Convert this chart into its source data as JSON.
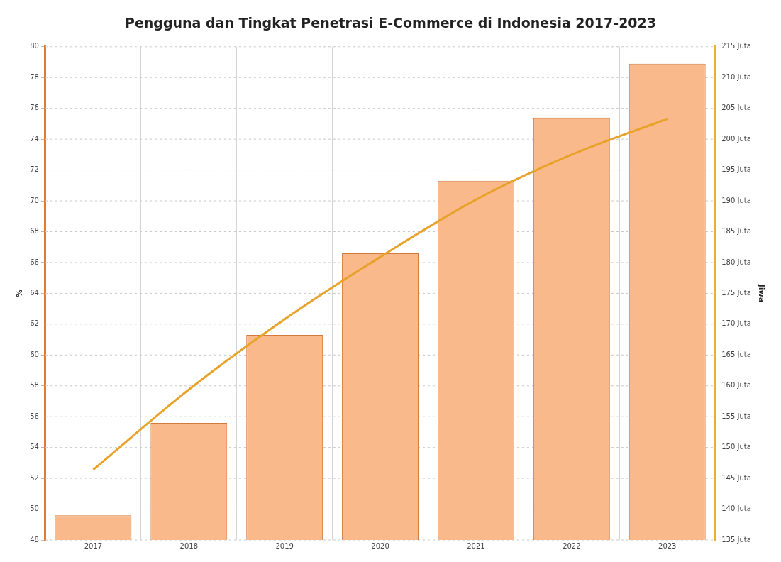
{
  "chart_data": {
    "type": "bar",
    "title": "Pengguna dan Tingkat Penetrasi E-Commerce di Indonesia 2017-2023",
    "categories": [
      "2017",
      "2018",
      "2019",
      "2020",
      "2021",
      "2022",
      "2023"
    ],
    "series": [
      {
        "color": "#f9b98a",
        "values": [
          49.6,
          55.6,
          61.3,
          66.6,
          71.3,
          75.4,
          78.9
        ]
      },
      {
        "type": "line",
        "axis": "y2",
        "color": "#e8a22a",
        "values": [
          146.4,
          159.4,
          170.8,
          180.9,
          190.2,
          197.5,
          203.3
        ]
      }
    ],
    "ylabel": "%",
    "y2label": "Jiwa",
    "ylim": [
      48,
      80
    ],
    "yticks": [
      48,
      50,
      52,
      54,
      56,
      58,
      60,
      62,
      64,
      66,
      68,
      70,
      72,
      74,
      76,
      78,
      80
    ],
    "y2lim": [
      135,
      215
    ],
    "y2ticks": [
      {
        "value": 135,
        "label": "135 Juta"
      },
      {
        "value": 140,
        "label": "140 Juta"
      },
      {
        "value": 145,
        "label": "145 Juta"
      },
      {
        "value": 150,
        "label": "150 Juta"
      },
      {
        "value": 155,
        "label": "155 Juta"
      },
      {
        "value": 160,
        "label": "160 Juta"
      },
      {
        "value": 165,
        "label": "165 Juta"
      },
      {
        "value": 170,
        "label": "170 Juta"
      },
      {
        "value": 175,
        "label": "175 Juta"
      },
      {
        "value": 180,
        "label": "180 Juta"
      },
      {
        "value": 185,
        "label": "185 Juta"
      },
      {
        "value": 190,
        "label": "190 Juta"
      },
      {
        "value": 195,
        "label": "195 Juta"
      },
      {
        "value": 200,
        "label": "200 Juta"
      },
      {
        "value": 205,
        "label": "205 Juta"
      },
      {
        "value": 210,
        "label": "210 Juta"
      },
      {
        "value": 215,
        "label": "215 Juta"
      }
    ],
    "grid": true,
    "marker": "none",
    "line_style": "solid"
  }
}
